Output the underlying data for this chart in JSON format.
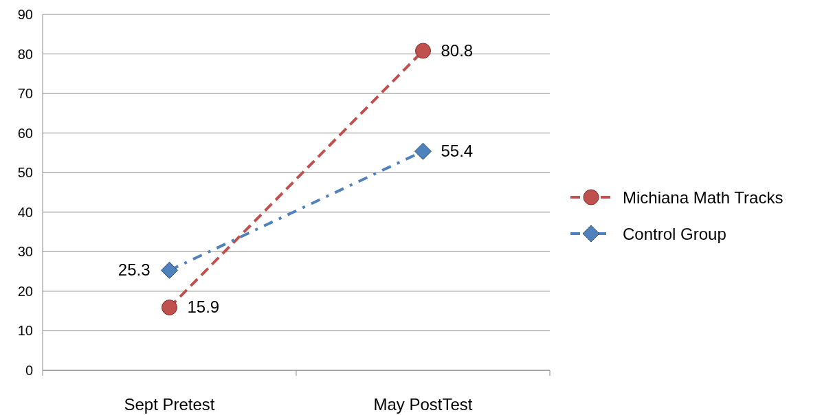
{
  "chart_data": {
    "type": "line",
    "categories": [
      "Sept Pretest",
      "May PostTest"
    ],
    "series": [
      {
        "name": "Michiana Math Tracks",
        "color": "#c0504d",
        "values": [
          15.9,
          80.8
        ],
        "marker": "circle",
        "line_style": "dashed"
      },
      {
        "name": "Control Group",
        "color": "#4f81bd",
        "values": [
          25.3,
          55.4
        ],
        "marker": "diamond",
        "line_style": "dashdot"
      }
    ],
    "ylim": [
      0,
      90
    ],
    "yticks": [
      0,
      10,
      20,
      30,
      40,
      50,
      60,
      70,
      80,
      90
    ],
    "grid": "y",
    "legend": "right",
    "data_labels": true
  }
}
